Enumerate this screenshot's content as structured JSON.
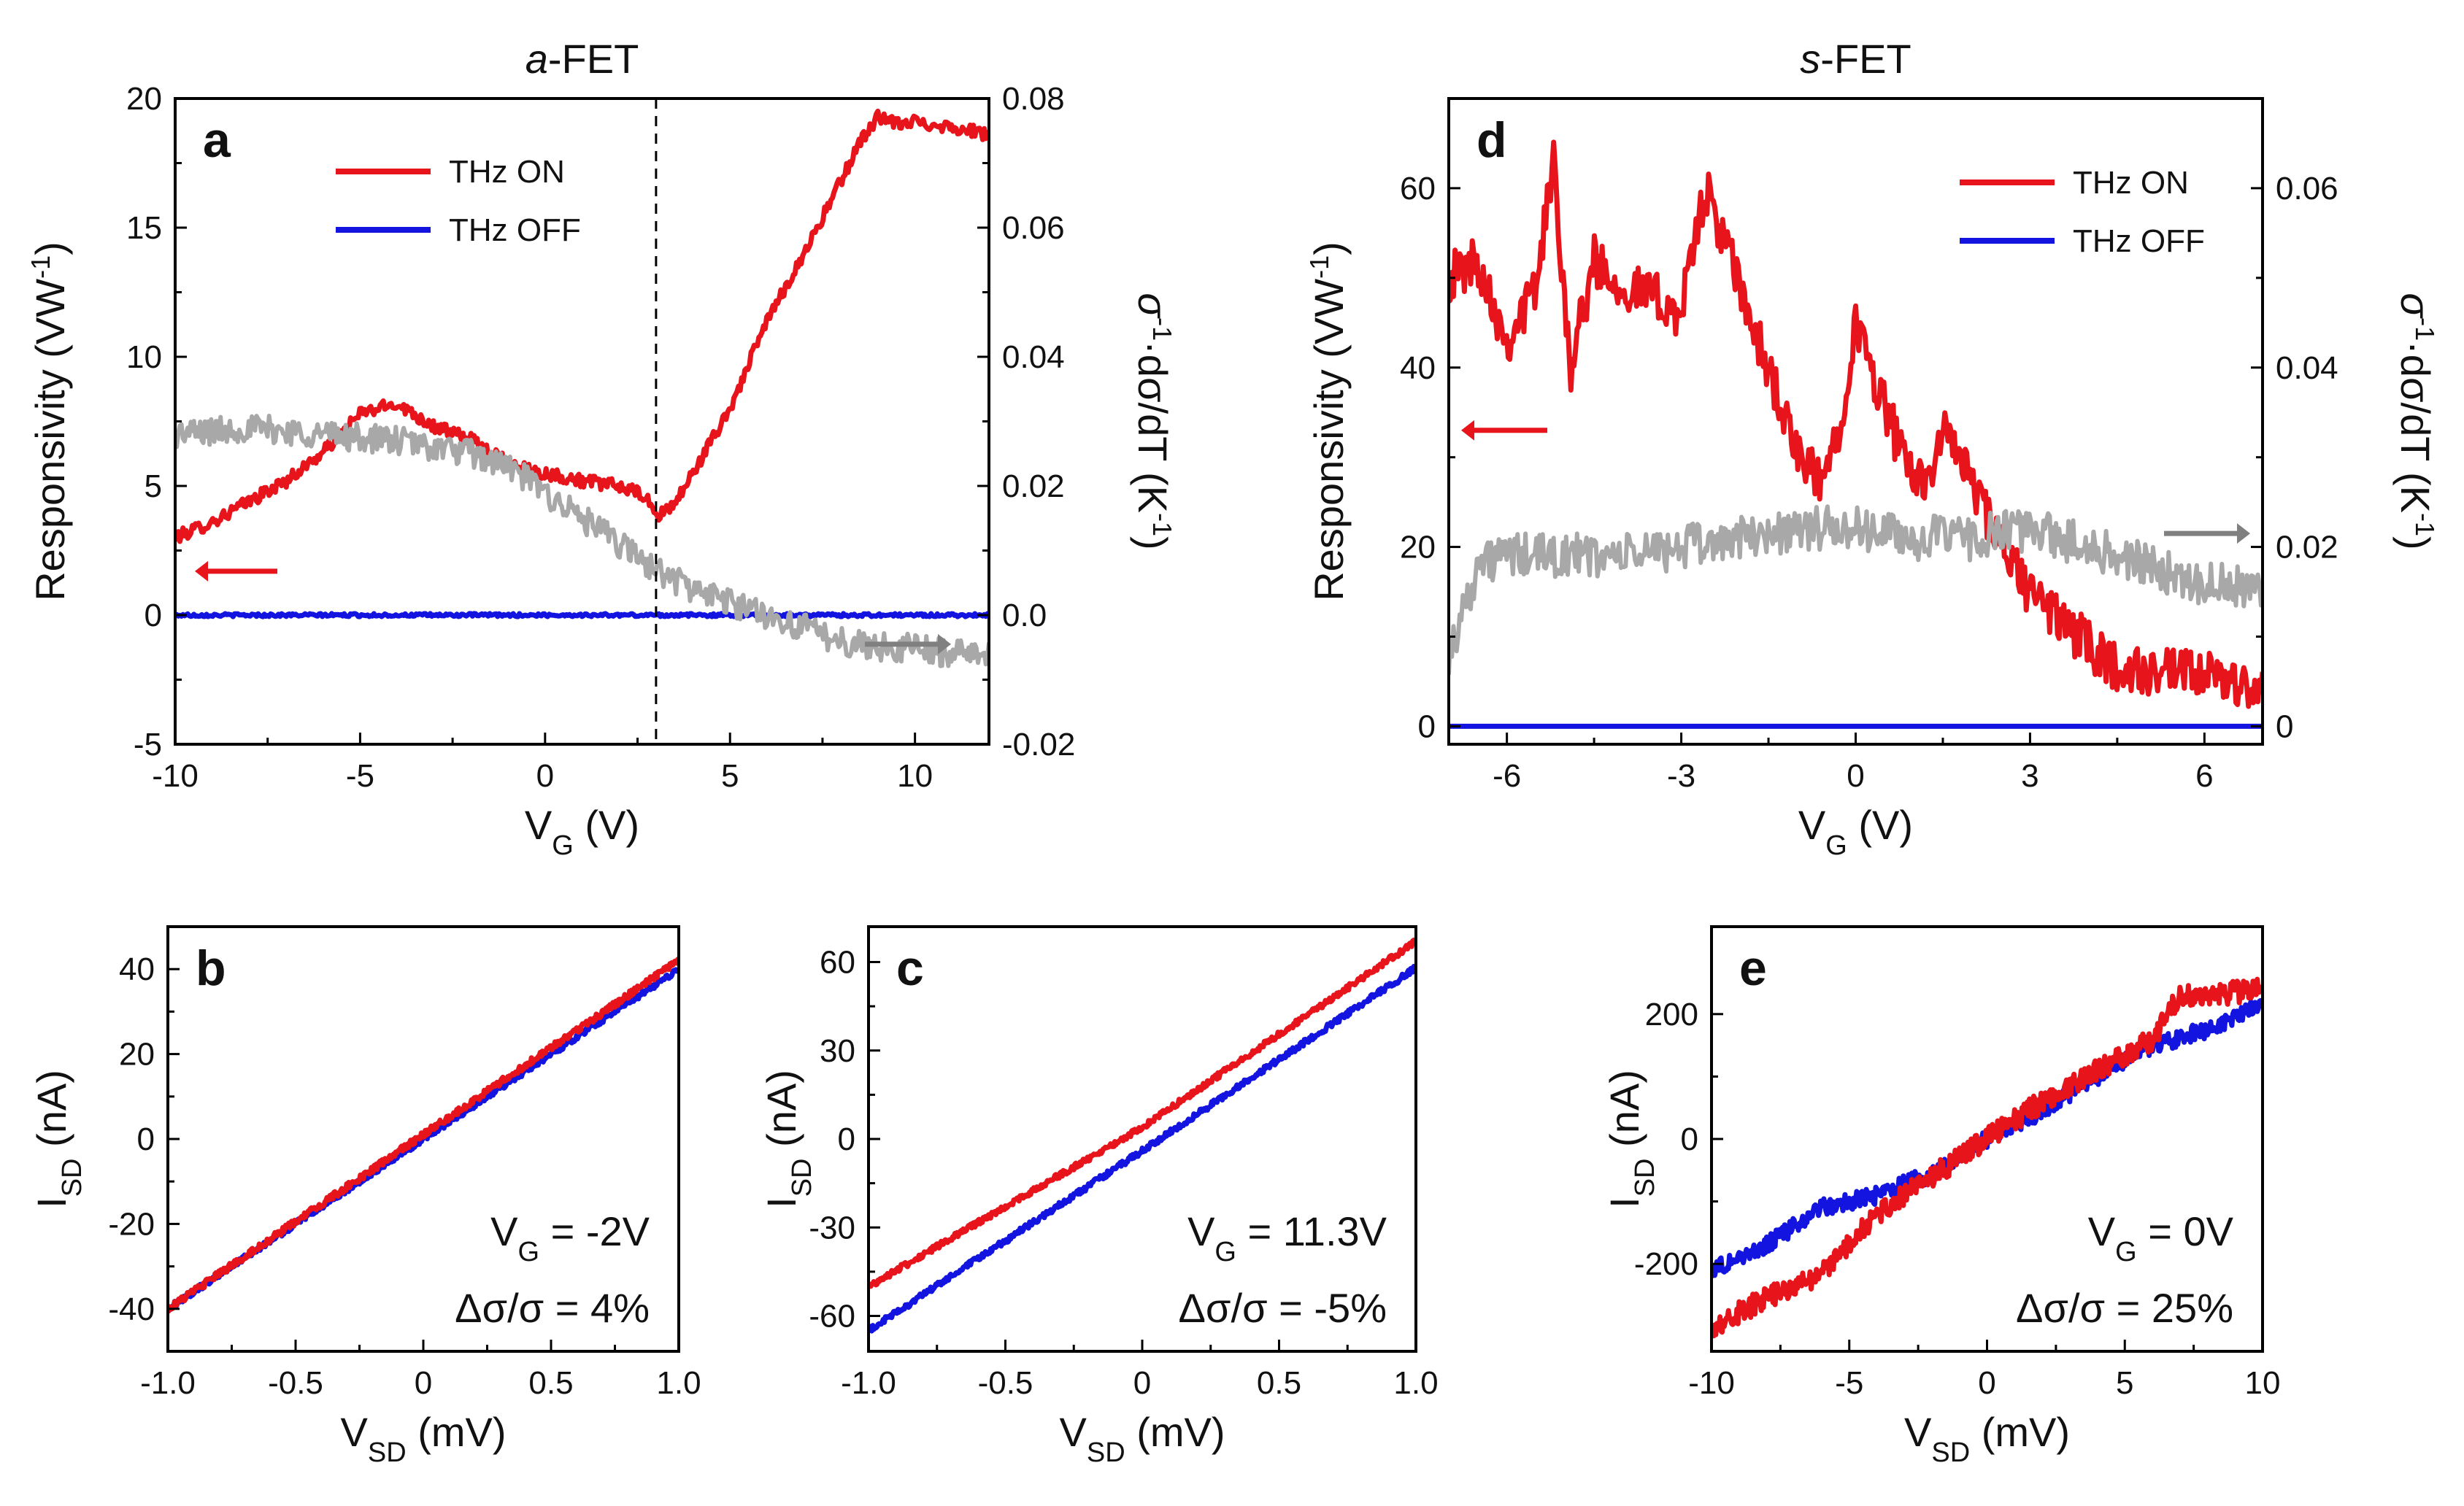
{
  "chart_data": [
    {
      "panel": "a",
      "type": "line",
      "title": "a-FET",
      "title_parts": [
        "a",
        "-FET"
      ],
      "xlabel": "V_G (V)",
      "xlabel_parts": [
        "V",
        "G",
        " (V)"
      ],
      "ylabel": "Responsivity (VW^-1)",
      "ylabel_parts": [
        "Responsivity (VW",
        "-1",
        ")"
      ],
      "y2label": "σ^-1·dσ/dT (K^-1)",
      "y2label_parts": [
        "σ",
        "-1",
        "·dσ/dT (K",
        "-1",
        ")"
      ],
      "xlim": [
        -10,
        12
      ],
      "ylim": [
        -5,
        20
      ],
      "y2lim": [
        -0.02,
        0.08
      ],
      "xticks": [
        -10,
        -5,
        0,
        5,
        10
      ],
      "yticks": [
        -5,
        0,
        5,
        10,
        15,
        20
      ],
      "y2ticks": [
        -0.02,
        0.0,
        0.02,
        0.04,
        0.06,
        0.08
      ],
      "xtick_labels": [
        "-10",
        "-5",
        "0",
        "5",
        "10"
      ],
      "ytick_labels": [
        "-5",
        "0",
        "5",
        "10",
        "15",
        "20"
      ],
      "y2tick_labels": [
        "-0.02",
        "0.0",
        "0.02",
        "0.04",
        "0.06",
        "0.08"
      ],
      "vline_x": 3,
      "legend": [
        "THz ON",
        "THz OFF"
      ],
      "series": [
        {
          "name": "THz ON",
          "axis": "left",
          "color": "#e8141c",
          "noise": 0.25,
          "x": [
            -10,
            -9,
            -8,
            -7,
            -6,
            -5,
            -4,
            -3,
            -2,
            -1,
            0,
            1,
            2,
            2.7,
            3,
            3.5,
            4,
            5,
            6,
            7,
            8,
            8.5,
            9,
            9.5,
            10,
            11,
            12
          ],
          "y": [
            3.0,
            3.6,
            4.4,
            5.2,
            6.3,
            7.8,
            8.2,
            7.3,
            6.8,
            5.9,
            5.5,
            5.2,
            5.0,
            4.6,
            3.8,
            4.3,
            5.5,
            8.0,
            11.4,
            14.0,
            16.8,
            18.3,
            19.3,
            19.0,
            19.1,
            18.9,
            18.6
          ]
        },
        {
          "name": "THz OFF",
          "axis": "left",
          "color": "#1414e0",
          "noise": 0.06,
          "x": [
            -10,
            12
          ],
          "y": [
            0,
            0
          ]
        },
        {
          "name": "σ^-1·dσ/dT",
          "axis": "right",
          "color": "#a8a8a8",
          "noise": 0.0022,
          "x": [
            -10,
            -8,
            -6,
            -4,
            -2,
            -1,
            0,
            1,
            2,
            3,
            4,
            5,
            6,
            7,
            8,
            9,
            10,
            11,
            12
          ],
          "y": [
            0.028,
            0.029,
            0.028,
            0.027,
            0.025,
            0.023,
            0.019,
            0.015,
            0.011,
            0.007,
            0.004,
            0.002,
            0.0,
            -0.002,
            -0.004,
            -0.005,
            -0.005,
            -0.006,
            -0.0055
          ]
        }
      ]
    },
    {
      "panel": "d",
      "type": "line",
      "title": "s-FET",
      "title_parts": [
        "s",
        "-FET"
      ],
      "xlabel": "V_G (V)",
      "xlabel_parts": [
        "V",
        "G",
        " (V)"
      ],
      "ylabel": "Responsivity (VW^-1)",
      "ylabel_parts": [
        "Responsivity (VW",
        "-1",
        ")"
      ],
      "y2label": "σ^-1·dσ/dT (K^-1)",
      "y2label_parts": [
        "σ",
        "-1",
        "·dσ/dT (K",
        "-1",
        ")"
      ],
      "xlim": [
        -7,
        7
      ],
      "ylim": [
        -2,
        70
      ],
      "y2lim": [
        -0.002,
        0.07
      ],
      "xticks": [
        -6,
        -3,
        0,
        3,
        6
      ],
      "yticks": [
        0,
        20,
        40,
        60
      ],
      "y2ticks": [
        0,
        0.02,
        0.04,
        0.06
      ],
      "xtick_labels": [
        "-6",
        "-3",
        "0",
        "3",
        "6"
      ],
      "ytick_labels": [
        "0",
        "20",
        "40",
        "60"
      ],
      "y2tick_labels": [
        "0",
        "0.02",
        "0.04",
        "0.06"
      ],
      "legend": [
        "THz ON",
        "THz OFF"
      ],
      "series": [
        {
          "name": "THz ON",
          "axis": "left",
          "color": "#e8141c",
          "noise": 2.8,
          "x": [
            -7,
            -6.5,
            -6,
            -5.5,
            -5.2,
            -4.9,
            -4.5,
            -4,
            -3.5,
            -3,
            -2.6,
            -2.2,
            -1.8,
            -1.4,
            -1,
            -0.6,
            -0.3,
            0,
            0.2,
            0.6,
            0.9,
            1.2,
            1.6,
            2,
            2.5,
            3,
            3.5,
            4,
            4.5,
            5,
            5.5,
            6,
            6.5,
            7
          ],
          "y": [
            50,
            52,
            43,
            49,
            63,
            40,
            52,
            49,
            48,
            46,
            60,
            53,
            45,
            38,
            30,
            27,
            33,
            45,
            41,
            34,
            28,
            28,
            33,
            27,
            20,
            15,
            12,
            9,
            6.5,
            6,
            5.8,
            5.5,
            5,
            3.5
          ]
        },
        {
          "name": "THz OFF",
          "axis": "left",
          "color": "#1414e0",
          "noise": 0,
          "x": [
            -7,
            7
          ],
          "y": [
            0,
            0
          ]
        },
        {
          "name": "σ^-1·dσ/dT",
          "axis": "right",
          "color": "#a8a8a8",
          "noise": 0.0025,
          "x": [
            -7,
            -6.5,
            -6,
            -5,
            -4,
            -3,
            -2,
            -1,
            0,
            1,
            2,
            3,
            4,
            5,
            6,
            7
          ],
          "y": [
            0.008,
            0.018,
            0.019,
            0.019,
            0.019,
            0.02,
            0.021,
            0.022,
            0.022,
            0.021,
            0.021,
            0.022,
            0.02,
            0.018,
            0.016,
            0.015
          ]
        }
      ]
    },
    {
      "panel": "b",
      "type": "line",
      "xlabel": "V_SD (mV)",
      "xlabel_parts": [
        "V",
        "SD",
        " (mV)"
      ],
      "ylabel": "I_SD (nA)",
      "ylabel_parts": [
        "I",
        "SD",
        " (nA)"
      ],
      "xlim": [
        -1.0,
        1.0
      ],
      "ylim": [
        -50,
        50
      ],
      "xticks": [
        -1.0,
        -0.5,
        0,
        0.5,
        1.0
      ],
      "yticks": [
        -40,
        -20,
        0,
        20,
        40
      ],
      "xtick_labels": [
        "-1.0",
        "-0.5",
        "0",
        "0.5",
        "1.0"
      ],
      "ytick_labels": [
        "-40",
        "-20",
        "0",
        "20",
        "40"
      ],
      "annotation_vg": "V_G = -2V",
      "annotation_vg_parts": [
        "V",
        "G",
        " = -2V"
      ],
      "annotation_ds": "Δσ/σ = 4%",
      "series": [
        {
          "name": "THz OFF",
          "color": "#1414e0",
          "noise": 0.7,
          "x": [
            -1.0,
            1.0
          ],
          "y": [
            -40,
            40
          ]
        },
        {
          "name": "THz ON",
          "color": "#e8141c",
          "noise": 0.8,
          "x": [
            -1.0,
            0,
            1.0
          ],
          "y": [
            -40,
            1,
            42
          ]
        }
      ]
    },
    {
      "panel": "c",
      "type": "line",
      "xlabel": "V_SD (mV)",
      "xlabel_parts": [
        "V",
        "SD",
        " (mV)"
      ],
      "ylabel": "I_SD (nA)",
      "ylabel_parts": [
        "I",
        "SD",
        " (nA)"
      ],
      "xlim": [
        -1.0,
        1.0
      ],
      "ylim": [
        -72,
        72
      ],
      "xticks": [
        -1.0,
        -0.5,
        0,
        0.5,
        1.0
      ],
      "yticks": [
        -60,
        -30,
        0,
        30,
        60
      ],
      "xtick_labels": [
        "-1.0",
        "-0.5",
        "0",
        "0.5",
        "1.0"
      ],
      "ytick_labels": [
        "-60",
        "-30",
        "0",
        "30",
        "60"
      ],
      "annotation_vg": "V_G = 11.3V",
      "annotation_vg_parts": [
        "V",
        "G",
        " = 11.3V"
      ],
      "annotation_ds": "Δσ/σ = -5%",
      "series": [
        {
          "name": "THz OFF",
          "color": "#1414e0",
          "noise": 1.0,
          "x": [
            -1.0,
            0,
            1.0
          ],
          "y": [
            -65,
            -4,
            58
          ]
        },
        {
          "name": "THz ON",
          "color": "#e8141c",
          "noise": 1.0,
          "x": [
            -1.0,
            0,
            1.0
          ],
          "y": [
            -50,
            4,
            67
          ]
        }
      ]
    },
    {
      "panel": "e",
      "type": "line",
      "xlabel": "V_SD (mV)",
      "xlabel_parts": [
        "V",
        "SD",
        " (mV)"
      ],
      "ylabel": "I_SD (nA)",
      "ylabel_parts": [
        "I",
        "SD",
        " (nA)"
      ],
      "xlim": [
        -10,
        10
      ],
      "ylim": [
        -340,
        340
      ],
      "xticks": [
        -10,
        -5,
        0,
        5,
        10
      ],
      "yticks": [
        -200,
        0,
        200
      ],
      "xtick_labels": [
        "-10",
        "-5",
        "0",
        "5",
        "10"
      ],
      "ytick_labels": [
        "-200",
        "0",
        "200"
      ],
      "annotation_vg": "V_G = 0V",
      "annotation_vg_parts": [
        "V",
        "G",
        " = 0V"
      ],
      "annotation_ds": "Δσ/σ = 25%",
      "series": [
        {
          "name": "THz OFF",
          "color": "#1414e0",
          "noise": 14,
          "x": [
            -10,
            -8,
            -6,
            -4,
            -2,
            0,
            2,
            4,
            6,
            8,
            10
          ],
          "y": [
            -210,
            -170,
            -110,
            -90,
            -55,
            0,
            45,
            100,
            150,
            175,
            220
          ]
        },
        {
          "name": "THz ON",
          "color": "#e8141c",
          "noise": 18,
          "x": [
            -10,
            -8,
            -6,
            -4,
            -2,
            0,
            2,
            4,
            6,
            7,
            8,
            10
          ],
          "y": [
            -300,
            -255,
            -215,
            -120,
            -60,
            0,
            60,
            110,
            160,
            230,
            230,
            240
          ]
        }
      ]
    }
  ]
}
